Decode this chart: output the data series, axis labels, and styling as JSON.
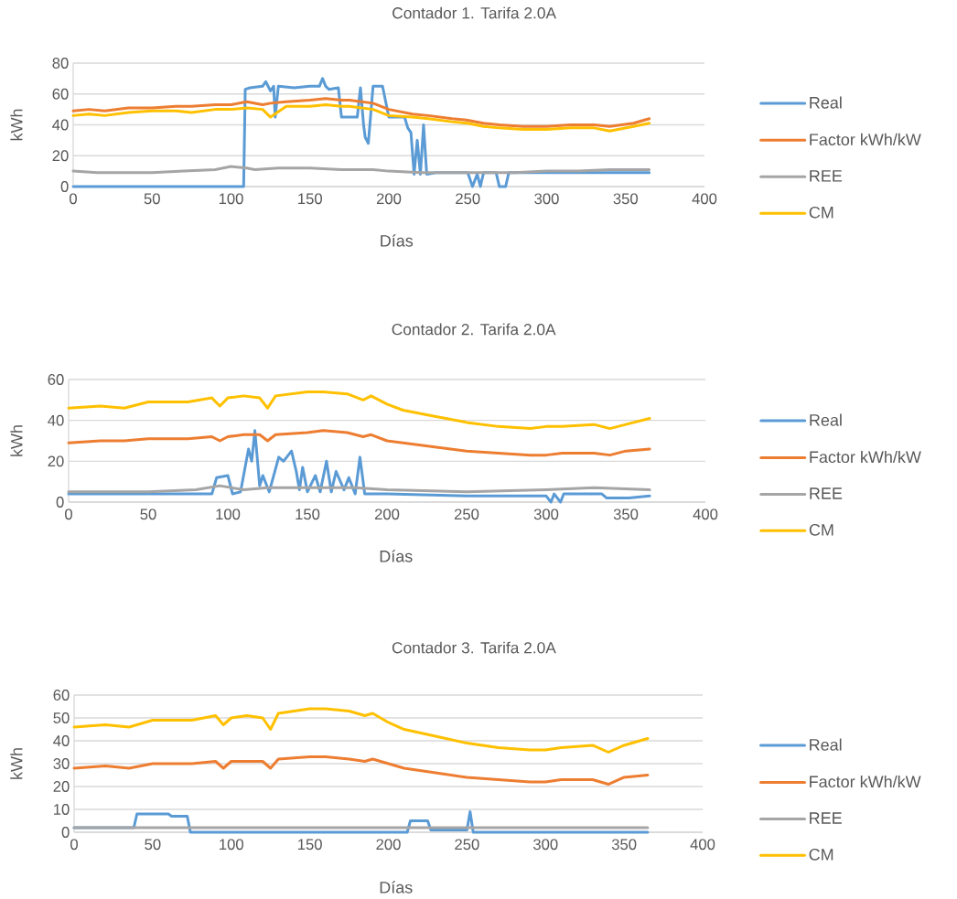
{
  "chart_data": [
    {
      "type": "line",
      "title": "Contador 1. Tarifa 2.0A",
      "xlabel": "Días",
      "ylabel": "kWh",
      "xlim": [
        0,
        400
      ],
      "xticks": [
        0,
        50,
        100,
        150,
        200,
        250,
        300,
        350,
        400
      ],
      "ylim": [
        0,
        80
      ],
      "yticks": [
        0,
        20,
        40,
        60,
        80
      ],
      "grid": "y",
      "legend": "right",
      "series": [
        {
          "name": "Real",
          "color": "#5b9bd5",
          "x": [
            0,
            108,
            109,
            112,
            120,
            122,
            125,
            127,
            128,
            130,
            140,
            150,
            156,
            158,
            160,
            162,
            168,
            170,
            180,
            182,
            184,
            185,
            187,
            190,
            196,
            200,
            210,
            212,
            214,
            216,
            218,
            220,
            222,
            224,
            230,
            250,
            253,
            256,
            258,
            260,
            268,
            270,
            274,
            276,
            300,
            330,
            365
          ],
          "values": [
            0,
            0,
            63,
            64,
            65,
            68,
            62,
            65,
            45,
            65,
            64,
            65,
            65,
            70,
            65,
            63,
            64,
            45,
            45,
            64,
            40,
            32,
            28,
            65,
            65,
            45,
            45,
            38,
            35,
            8,
            30,
            8,
            40,
            8,
            9,
            9,
            0,
            8,
            0,
            9,
            9,
            0,
            0,
            9,
            9,
            9,
            9
          ]
        },
        {
          "name": "Factor kWh/kW",
          "color": "#ed7d31",
          "x": [
            0,
            10,
            20,
            35,
            50,
            65,
            75,
            90,
            100,
            110,
            120,
            125,
            135,
            150,
            160,
            170,
            175,
            190,
            200,
            215,
            225,
            240,
            250,
            260,
            270,
            285,
            300,
            315,
            330,
            340,
            355,
            365
          ],
          "values": [
            49,
            50,
            49,
            51,
            51,
            52,
            52,
            53,
            53,
            55,
            53,
            54,
            55,
            56,
            57,
            56,
            56,
            54,
            50,
            47,
            46,
            44,
            43,
            41,
            40,
            39,
            39,
            40,
            40,
            39,
            41,
            44
          ]
        },
        {
          "name": "REE",
          "color": "#a5a5a5",
          "x": [
            0,
            15,
            30,
            50,
            70,
            90,
            100,
            110,
            115,
            130,
            150,
            170,
            190,
            200,
            220,
            240,
            260,
            280,
            300,
            320,
            340,
            365
          ],
          "values": [
            10,
            9,
            9,
            9,
            10,
            11,
            13,
            12,
            11,
            12,
            12,
            11,
            11,
            10,
            9,
            9,
            9,
            9,
            10,
            10,
            11,
            11
          ]
        },
        {
          "name": "CM",
          "color": "#ffc000",
          "x": [
            0,
            10,
            20,
            35,
            50,
            65,
            75,
            90,
            100,
            110,
            120,
            125,
            135,
            150,
            160,
            170,
            175,
            190,
            200,
            215,
            225,
            240,
            250,
            260,
            270,
            285,
            300,
            315,
            330,
            340,
            355,
            365
          ],
          "values": [
            46,
            47,
            46,
            48,
            49,
            49,
            48,
            50,
            50,
            51,
            50,
            45,
            52,
            52,
            53,
            52,
            52,
            50,
            46,
            45,
            44,
            42,
            41,
            39,
            38,
            37,
            37,
            38,
            38,
            36,
            39,
            41
          ]
        }
      ]
    },
    {
      "type": "line",
      "title": "Contador 2. Tarifa 2.0A",
      "xlabel": "Días",
      "ylabel": "kWh",
      "xlim": [
        0,
        400
      ],
      "xticks": [
        0,
        50,
        100,
        150,
        200,
        250,
        300,
        350,
        400
      ],
      "ylim": [
        0,
        60
      ],
      "yticks": [
        0,
        20,
        40,
        60
      ],
      "grid": "y",
      "legend": "right",
      "series": [
        {
          "name": "Real",
          "color": "#5b9bd5",
          "x": [
            0,
            50,
            90,
            93,
            100,
            103,
            108,
            113,
            115,
            117,
            120,
            122,
            126,
            132,
            135,
            140,
            143,
            145,
            147,
            150,
            155,
            158,
            162,
            165,
            168,
            173,
            176,
            180,
            183,
            186,
            200,
            250,
            300,
            303,
            305,
            309,
            311,
            335,
            338,
            352,
            365
          ],
          "values": [
            4,
            4,
            4,
            12,
            13,
            4,
            5,
            26,
            20,
            35,
            8,
            13,
            5,
            22,
            20,
            25,
            15,
            6,
            17,
            5,
            13,
            5,
            20,
            5,
            15,
            6,
            12,
            4,
            22,
            4,
            4,
            3,
            3,
            0,
            4,
            0,
            4,
            4,
            2,
            2,
            3
          ]
        },
        {
          "name": "Factor kWh/kW",
          "color": "#ed7d31",
          "x": [
            0,
            20,
            35,
            50,
            75,
            90,
            95,
            100,
            110,
            120,
            125,
            130,
            150,
            160,
            175,
            185,
            190,
            200,
            210,
            230,
            250,
            270,
            290,
            300,
            310,
            330,
            340,
            350,
            365
          ],
          "values": [
            29,
            30,
            30,
            31,
            31,
            32,
            30,
            32,
            33,
            33,
            30,
            33,
            34,
            35,
            34,
            32,
            33,
            30,
            29,
            27,
            25,
            24,
            23,
            23,
            24,
            24,
            23,
            25,
            26
          ]
        },
        {
          "name": "REE",
          "color": "#a5a5a5",
          "x": [
            0,
            50,
            80,
            95,
            110,
            125,
            150,
            180,
            200,
            250,
            300,
            330,
            365
          ],
          "values": [
            5,
            5,
            6,
            8,
            6,
            7,
            7,
            7,
            6,
            5,
            6,
            7,
            6
          ]
        },
        {
          "name": "CM",
          "color": "#ffc000",
          "x": [
            0,
            20,
            35,
            50,
            75,
            90,
            95,
            100,
            110,
            120,
            125,
            130,
            150,
            160,
            175,
            185,
            190,
            200,
            210,
            230,
            250,
            270,
            290,
            300,
            310,
            330,
            340,
            350,
            365
          ],
          "values": [
            46,
            47,
            46,
            49,
            49,
            51,
            47,
            51,
            52,
            51,
            46,
            52,
            54,
            54,
            53,
            50,
            52,
            48,
            45,
            42,
            39,
            37,
            36,
            37,
            37,
            38,
            36,
            38,
            41
          ]
        }
      ]
    },
    {
      "type": "line",
      "title": "Contador 3. Tarifa 2.0A",
      "xlabel": "Días",
      "ylabel": "kWh",
      "xlim": [
        0,
        400
      ],
      "xticks": [
        0,
        50,
        100,
        150,
        200,
        250,
        300,
        350,
        400
      ],
      "ylim": [
        0,
        60
      ],
      "yticks": [
        0,
        10,
        20,
        30,
        40,
        50,
        60
      ],
      "grid": "y",
      "legend": "right",
      "series": [
        {
          "name": "Real",
          "color": "#5b9bd5",
          "x": [
            0,
            38,
            40,
            60,
            62,
            72,
            74,
            212,
            214,
            225,
            227,
            250,
            252,
            254,
            365
          ],
          "values": [
            2,
            2,
            8,
            8,
            7,
            7,
            0,
            0,
            5,
            5,
            1,
            1,
            9,
            0,
            0
          ]
        },
        {
          "name": "Factor kWh/kW",
          "color": "#ed7d31",
          "x": [
            0,
            20,
            35,
            50,
            75,
            90,
            95,
            100,
            110,
            120,
            125,
            130,
            150,
            160,
            175,
            185,
            190,
            200,
            210,
            230,
            250,
            270,
            290,
            300,
            310,
            330,
            340,
            350,
            365
          ],
          "values": [
            28,
            29,
            28,
            30,
            30,
            31,
            28,
            31,
            31,
            31,
            28,
            32,
            33,
            33,
            32,
            31,
            32,
            30,
            28,
            26,
            24,
            23,
            22,
            22,
            23,
            23,
            21,
            24,
            25
          ]
        },
        {
          "name": "REE",
          "color": "#a5a5a5",
          "x": [
            0,
            100,
            200,
            300,
            365
          ],
          "values": [
            2,
            2,
            2,
            2,
            2
          ]
        },
        {
          "name": "CM",
          "color": "#ffc000",
          "x": [
            0,
            20,
            35,
            50,
            75,
            90,
            95,
            100,
            110,
            120,
            125,
            130,
            150,
            160,
            175,
            185,
            190,
            200,
            210,
            230,
            250,
            270,
            290,
            300,
            310,
            330,
            340,
            350,
            365
          ],
          "values": [
            46,
            47,
            46,
            49,
            49,
            51,
            47,
            50,
            51,
            50,
            45,
            52,
            54,
            54,
            53,
            51,
            52,
            48,
            45,
            42,
            39,
            37,
            36,
            36,
            37,
            38,
            35,
            38,
            41
          ]
        }
      ]
    }
  ]
}
